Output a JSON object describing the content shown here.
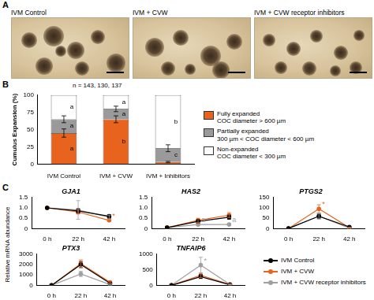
{
  "panel_a": {
    "panel_label": "A",
    "images": [
      {
        "caption": "IVM Control"
      },
      {
        "caption": "IVM + CVW"
      },
      {
        "caption": "IVM + CVW receptor inhibitors"
      }
    ]
  },
  "panel_c": {
    "panel_label": "C",
    "y_label": "Relative mRNA abundance",
    "legend": "bottom-right"
  },
  "chart_data": [
    {
      "panel_label": "B",
      "type": "bar",
      "stacked": true,
      "subtitle": "n = 143, 130, 137",
      "y_label": "Cumulus Expansion (%)",
      "categories": [
        "IVM Control",
        "IVM + CVW",
        "IVM + Inhibitors"
      ],
      "ylim": [
        0,
        100
      ],
      "yticks": [
        0,
        25,
        50,
        75,
        100
      ],
      "grid": false,
      "legend": "right",
      "series": [
        {
          "name": "Fully expanded",
          "description": "COC diameter > 600 µm",
          "color": "#e8641e",
          "values": [
            45,
            65,
            3
          ],
          "errors": [
            6,
            5,
            1
          ],
          "letters": [
            "a",
            "b",
            null
          ]
        },
        {
          "name": "Partially expanded",
          "description": "300 µm < COC diameter < 600 µm",
          "color": "#9a9a9a",
          "values": [
            20,
            15,
            20
          ],
          "errors": [
            5,
            4,
            5
          ],
          "letters": [
            "a",
            "a",
            "c"
          ]
        },
        {
          "name": "Non-expanded",
          "description": "COC diameter < 300 µm",
          "color": "#ffffff",
          "values": [
            35,
            20,
            77
          ],
          "errors": [
            0,
            0,
            0
          ],
          "letters": [
            "a",
            "a",
            "b"
          ]
        }
      ]
    },
    {
      "type": "line",
      "title": "GJA1",
      "categories": [
        "0 h",
        "22 h",
        "42 h"
      ],
      "marker": "circle",
      "line_style": "solid",
      "grid": false,
      "ylim": [
        0,
        1.5
      ],
      "yticks": [
        0,
        0.5,
        {
          "value": 1,
          "label": "1.0"
        },
        1.5
      ],
      "series": [
        {
          "name": "IVM Control",
          "color": "#000000",
          "values": [
            1,
            0.85,
            0.6
          ],
          "errors": [
            0,
            0.1,
            0.08
          ]
        },
        {
          "name": "IVM + CVW",
          "color": "#e8641e",
          "values": [
            1,
            0.8,
            0.4
          ],
          "errors": [
            0,
            0.1,
            0.05
          ]
        },
        {
          "name": "IVM + CVW receptor inhibitors",
          "color": "#a0a0a0",
          "values": [
            1,
            0.9,
            0.55
          ],
          "errors": [
            0,
            0.45,
            0.1
          ]
        }
      ],
      "annotations": [
        {
          "series": "IVM + CVW",
          "x": "42 h",
          "text": "*"
        }
      ]
    },
    {
      "type": "line",
      "title": "HAS2",
      "categories": [
        "0 h",
        "22 h",
        "42 h"
      ],
      "marker": "circle",
      "line_style": "solid",
      "grid": false,
      "ylim": [
        0,
        1.5
      ],
      "yticks": [
        0,
        0.5,
        {
          "value": 1,
          "label": "1.0"
        },
        1.5
      ],
      "series": [
        {
          "name": "IVM Control",
          "color": "#000000",
          "values": [
            0.05,
            0.35,
            0.55
          ],
          "errors": [
            0,
            0.08,
            0.1
          ]
        },
        {
          "name": "IVM + CVW",
          "color": "#e8641e",
          "values": [
            0.05,
            0.4,
            0.65
          ],
          "errors": [
            0,
            0.1,
            0.12
          ]
        },
        {
          "name": "IVM + CVW receptor inhibitors",
          "color": "#a0a0a0",
          "values": [
            0.05,
            0.2,
            0.2
          ],
          "errors": [
            0,
            0.05,
            0.05
          ]
        }
      ],
      "annotations": [
        {
          "series": "IVM + CVW receptor inhibitors",
          "x": "22 h",
          "text": "a"
        },
        {
          "series": "IVM + CVW receptor inhibitors",
          "x": "42 h",
          "text": "a"
        }
      ]
    },
    {
      "type": "line",
      "title": "PTGS2",
      "categories": [
        "0 h",
        "22 h",
        "42 h"
      ],
      "marker": "circle",
      "line_style": "solid",
      "grid": false,
      "ylim": [
        0,
        150
      ],
      "yticks": [
        0,
        50,
        100,
        150
      ],
      "series": [
        {
          "name": "IVM Control",
          "color": "#000000",
          "values": [
            1,
            60,
            8
          ],
          "errors": [
            0,
            10,
            3
          ]
        },
        {
          "name": "IVM + CVW",
          "color": "#e8641e",
          "values": [
            1,
            95,
            5
          ],
          "errors": [
            0,
            20,
            2
          ]
        },
        {
          "name": "IVM + CVW receptor inhibitors",
          "color": "#a0a0a0",
          "values": [
            1,
            60,
            3
          ],
          "errors": [
            0,
            15,
            1
          ]
        }
      ],
      "annotations": [
        {
          "series": "IVM + CVW",
          "x": "22 h",
          "text": "*"
        }
      ]
    },
    {
      "type": "line",
      "title": "PTX3",
      "categories": [
        "0 h",
        "22 h",
        "42 h"
      ],
      "marker": "circle",
      "line_style": "solid",
      "grid": false,
      "ylim": [
        0,
        3000
      ],
      "yticks": [
        0,
        1000,
        2000,
        3000
      ],
      "series": [
        {
          "name": "IVM Control",
          "color": "#000000",
          "values": [
            1,
            2000,
            200
          ],
          "errors": [
            0,
            300,
            50
          ]
        },
        {
          "name": "IVM + CVW",
          "color": "#e8641e",
          "values": [
            1,
            2100,
            300
          ],
          "errors": [
            0,
            350,
            80
          ]
        },
        {
          "name": "IVM + CVW receptor inhibitors",
          "color": "#a0a0a0",
          "values": [
            1,
            1100,
            80
          ],
          "errors": [
            0,
            250,
            30
          ]
        }
      ],
      "annotations": []
    },
    {
      "type": "line",
      "title": "TNFAIP6",
      "categories": [
        "0 h",
        "22 h",
        "42 h"
      ],
      "marker": "circle",
      "line_style": "solid",
      "grid": false,
      "ylim": [
        0,
        1000
      ],
      "yticks": [
        0,
        500,
        1000
      ],
      "series": [
        {
          "name": "IVM Control",
          "color": "#000000",
          "values": [
            1,
            280,
            20
          ],
          "errors": [
            0,
            60,
            8
          ]
        },
        {
          "name": "IVM + CVW",
          "color": "#e8641e",
          "values": [
            1,
            320,
            30
          ],
          "errors": [
            0,
            70,
            10
          ]
        },
        {
          "name": "IVM + CVW receptor inhibitors",
          "color": "#a0a0a0",
          "values": [
            1,
            650,
            30
          ],
          "errors": [
            0,
            250,
            10
          ]
        }
      ],
      "annotations": [
        {
          "series": "IVM + CVW receptor inhibitors",
          "x": "22 h",
          "text": "*"
        }
      ]
    }
  ]
}
